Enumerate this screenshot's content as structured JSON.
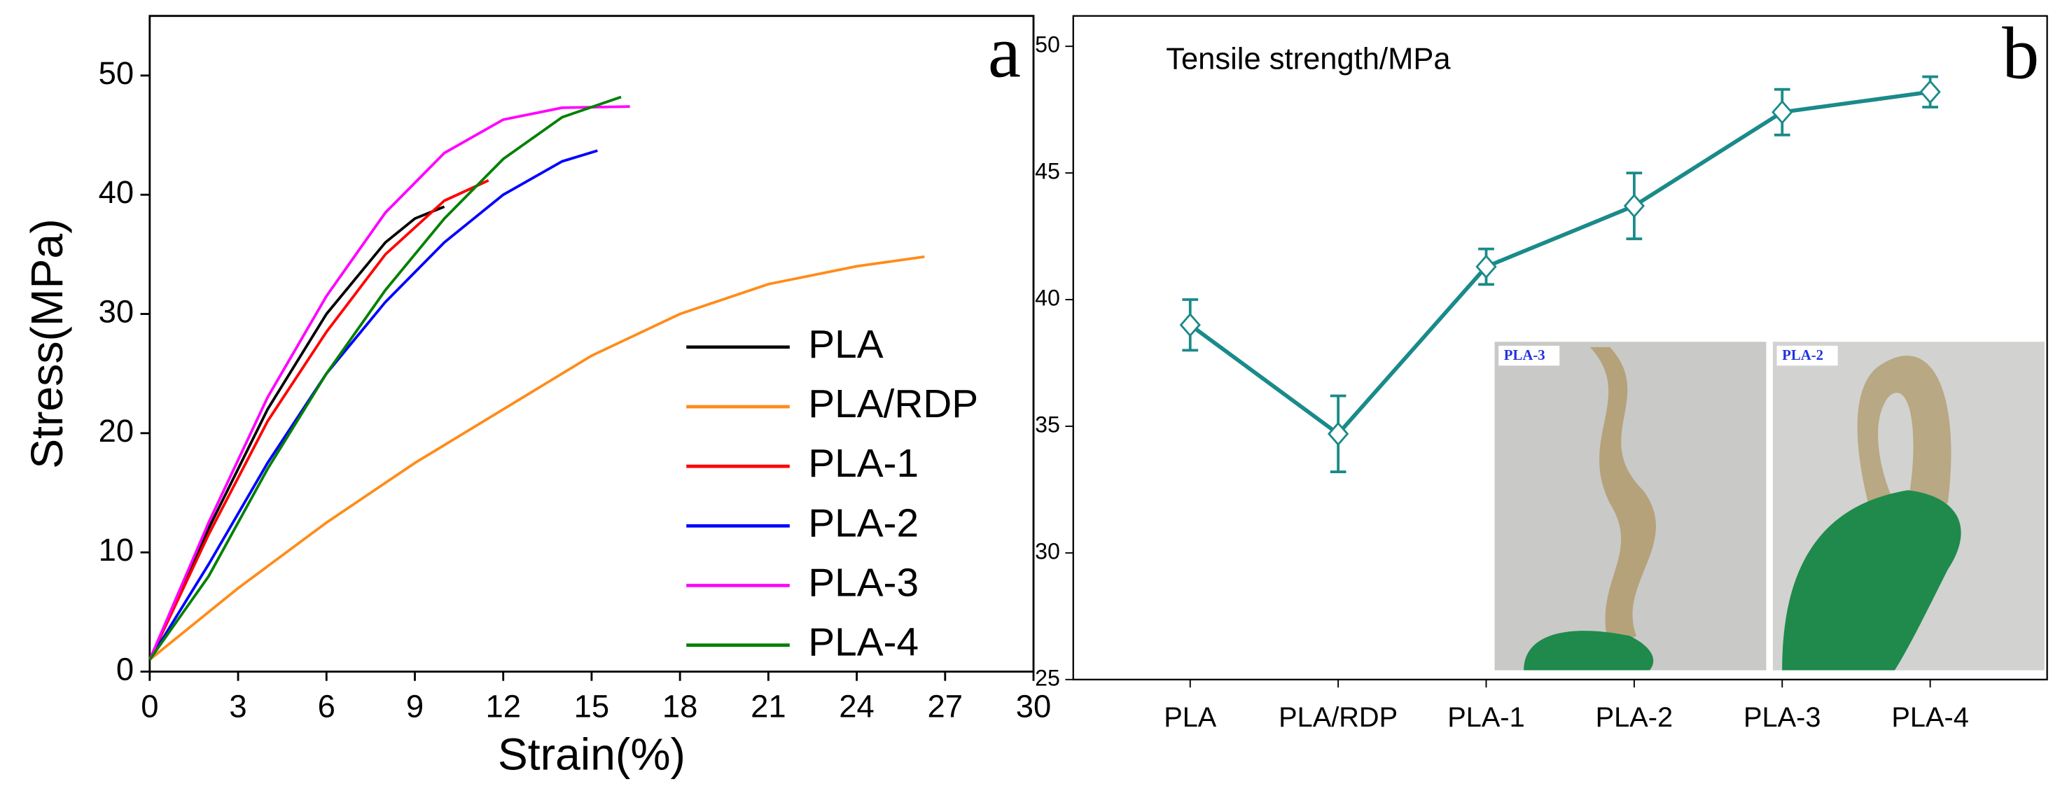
{
  "chart_data": [
    {
      "type": "line",
      "panel_label": "a",
      "x_label": "Strain(%)",
      "y_label": "Stress(MPa)",
      "xlim": [
        0,
        30
      ],
      "xticks": [
        0,
        3,
        6,
        9,
        12,
        15,
        18,
        21,
        24,
        27,
        30
      ],
      "ylim": [
        0,
        55
      ],
      "yticks": [
        0,
        10,
        20,
        30,
        40,
        50
      ],
      "legend": "lower right",
      "series": [
        {
          "name": "PLA",
          "color": "#000000",
          "x": [
            0,
            2,
            4,
            6,
            8,
            9,
            10
          ],
          "values": [
            1,
            12,
            22,
            30,
            36,
            38,
            39
          ]
        },
        {
          "name": "PLA/RDP",
          "color": "#ff8c1a",
          "x": [
            0,
            3,
            6,
            9,
            12,
            15,
            18,
            21,
            24,
            26.3
          ],
          "values": [
            1,
            7,
            12.5,
            17.5,
            22,
            26.5,
            30,
            32.5,
            34,
            34.8
          ]
        },
        {
          "name": "PLA-1",
          "color": "#ff0000",
          "x": [
            0,
            2,
            4,
            6,
            8,
            10,
            11.5
          ],
          "values": [
            1,
            11.5,
            21,
            28.5,
            35,
            39.5,
            41.2
          ]
        },
        {
          "name": "PLA-2",
          "color": "#0000ff",
          "x": [
            0,
            2,
            4,
            6,
            8,
            10,
            12,
            14,
            15.2
          ],
          "values": [
            1,
            9,
            17.5,
            25,
            31,
            36,
            40,
            42.8,
            43.7
          ]
        },
        {
          "name": "PLA-3",
          "color": "#ff00ff",
          "x": [
            0,
            2,
            4,
            6,
            8,
            10,
            12,
            14,
            16.3
          ],
          "values": [
            1,
            12.5,
            23,
            31.5,
            38.5,
            43.5,
            46.3,
            47.3,
            47.4
          ]
        },
        {
          "name": "PLA-4",
          "color": "#008000",
          "x": [
            0,
            2,
            4,
            6,
            8,
            10,
            12,
            14,
            16
          ],
          "values": [
            1,
            8,
            17,
            25,
            32,
            38,
            43,
            46.5,
            48.2
          ]
        }
      ]
    },
    {
      "type": "errorline",
      "panel_label": "b",
      "title": "Tensile strength/MPa",
      "categories": [
        "PLA",
        "PLA/RDP",
        "PLA-1",
        "PLA-2",
        "PLA-3",
        "PLA-4"
      ],
      "values": [
        39,
        34.7,
        41.3,
        43.7,
        47.4,
        48.2
      ],
      "errors": [
        1,
        1.5,
        0.7,
        1.3,
        0.9,
        0.6
      ],
      "color": "#1a8a8a",
      "ylim": [
        25,
        51.2
      ],
      "yticks": [
        25,
        30,
        35,
        40,
        45,
        50
      ],
      "annotations": [
        "PLA-3",
        "PLA-2"
      ]
    }
  ]
}
